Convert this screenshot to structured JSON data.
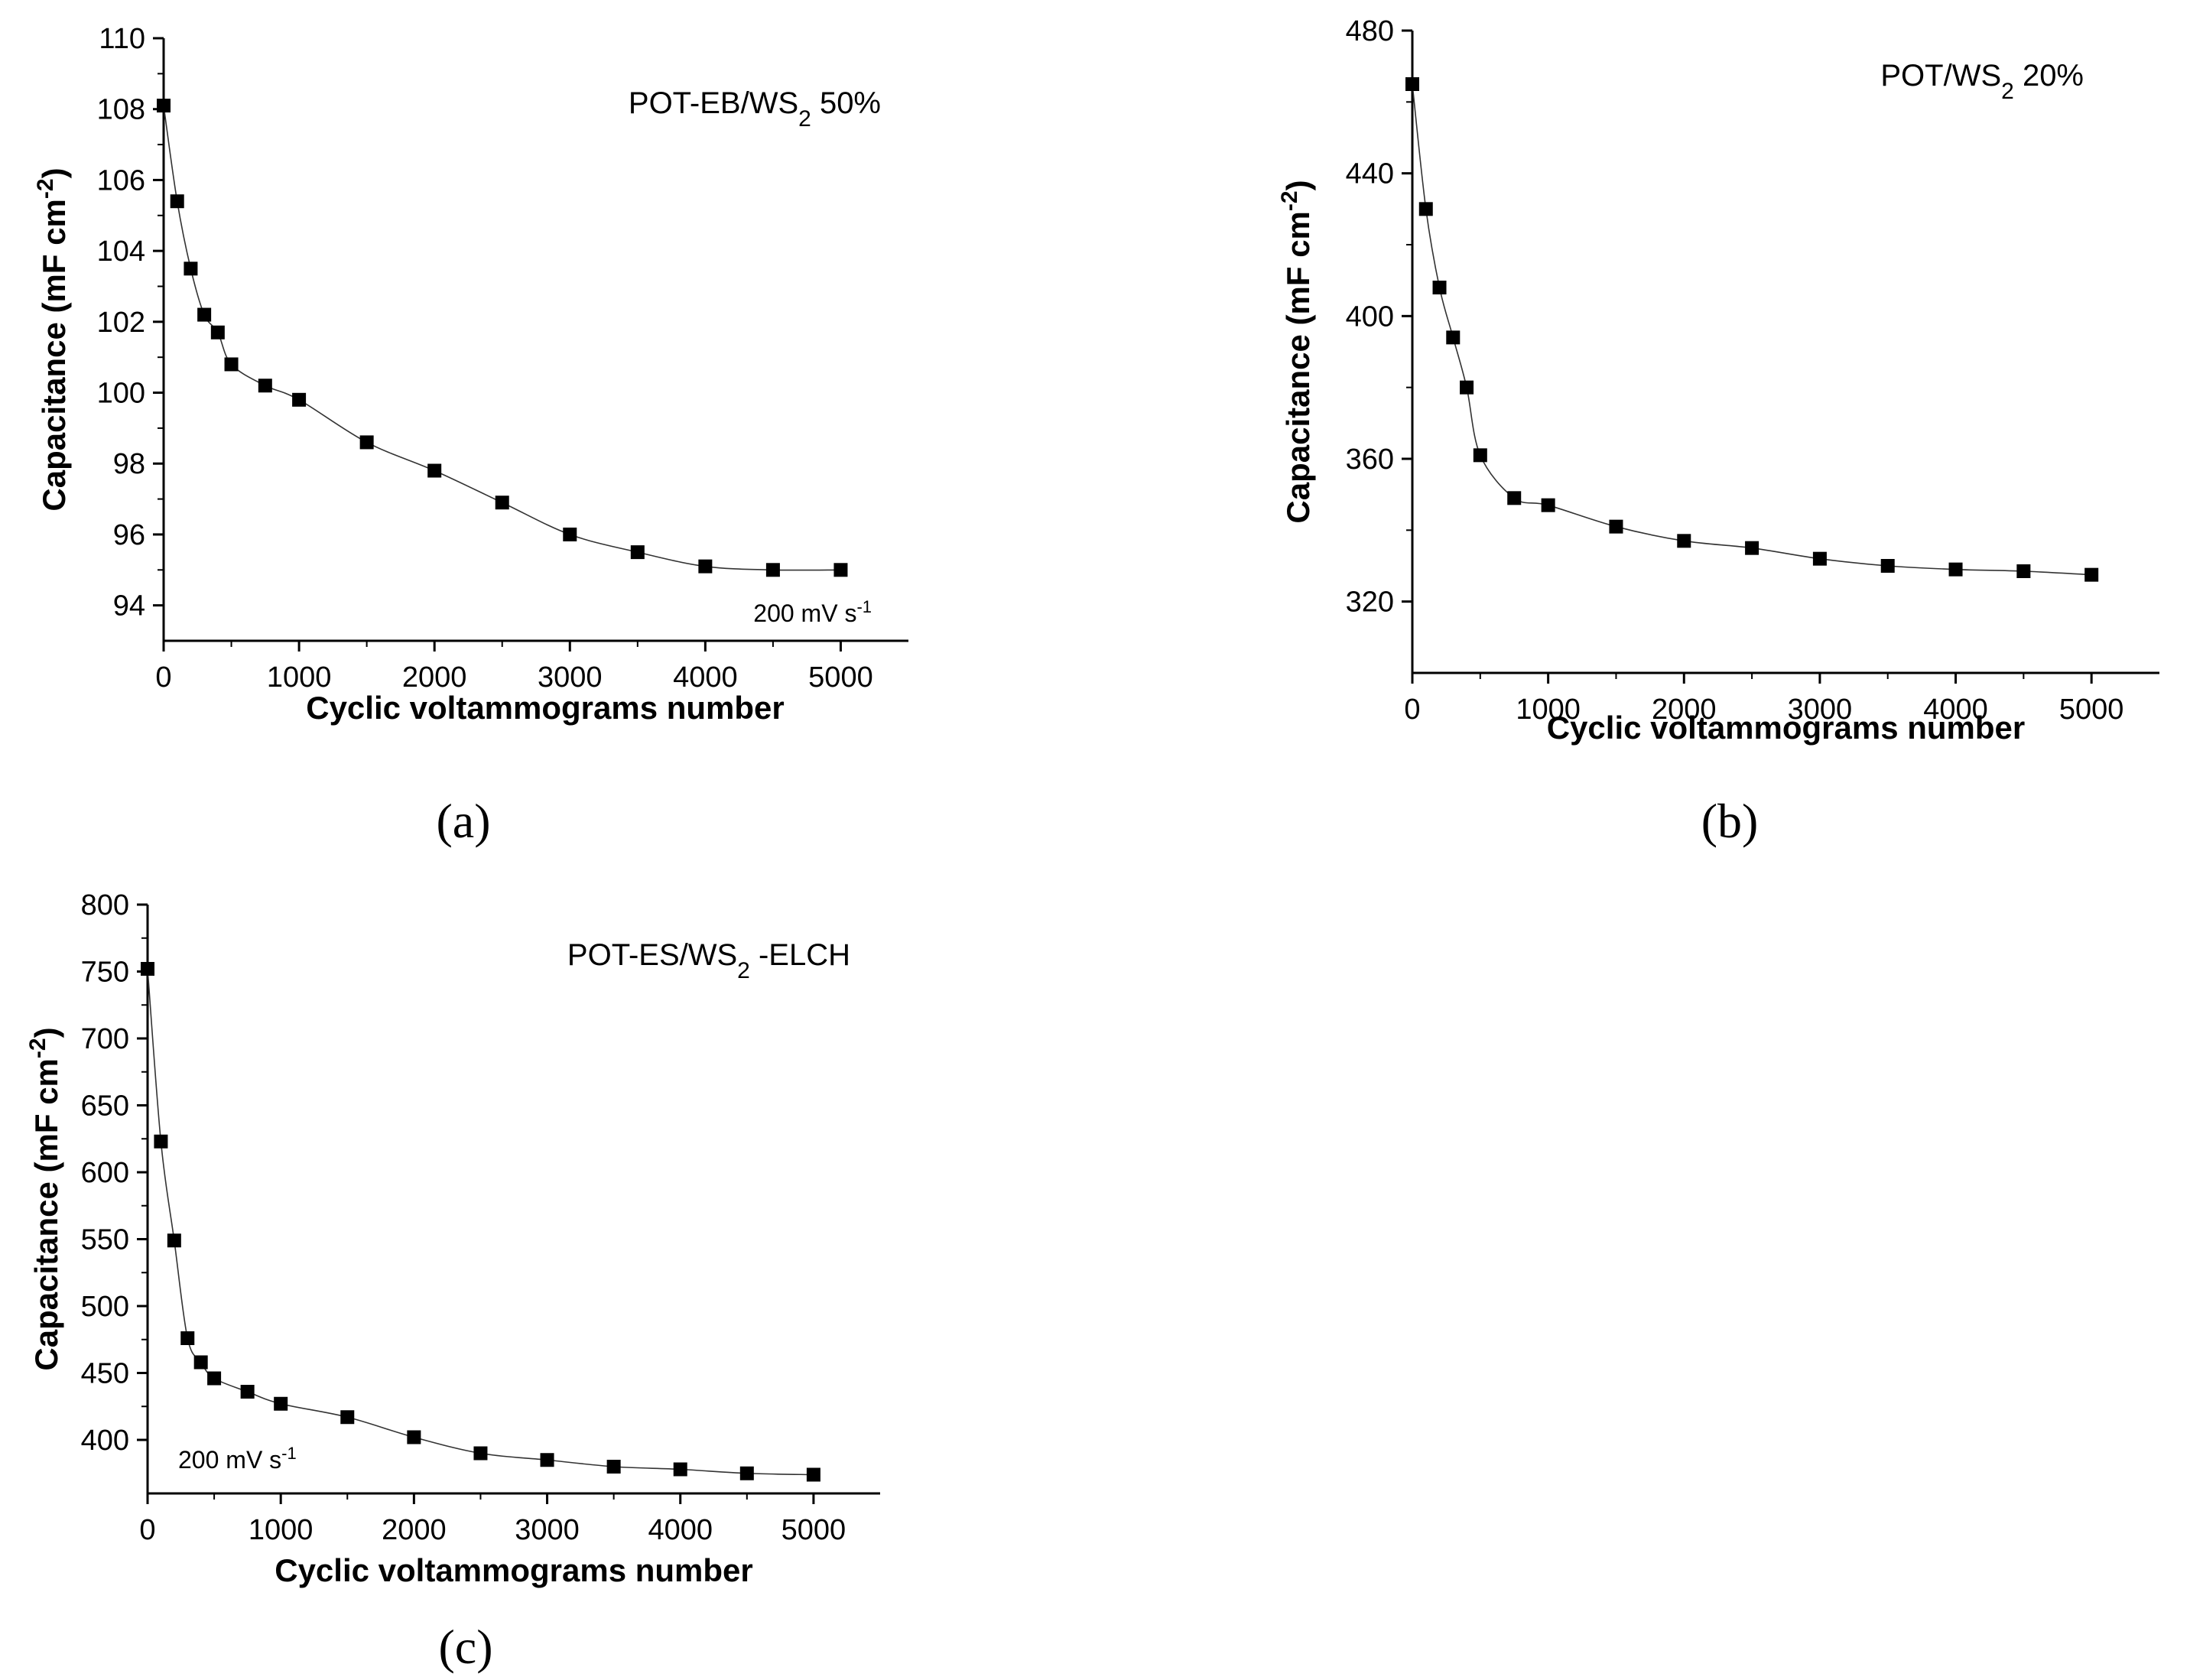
{
  "chart_data": [
    {
      "type": "scatter",
      "panel_label": "(a)",
      "sample_label": "POT-EB/WS2 50%",
      "sample_label_main": "POT-EB/WS",
      "sample_label_sub": "2",
      "sample_label_tail": " 50%",
      "scan_rate": "200 mV s",
      "scan_rate_sup": "-1",
      "xlabel": "Cyclic voltammograms number",
      "ylabel_main": "Capacitance (mF cm",
      "ylabel_sup": "-2",
      "ylabel_tail": ")",
      "xlim": [
        0,
        5500
      ],
      "ylim": [
        93,
        110
      ],
      "xticks": [
        0,
        1000,
        2000,
        3000,
        4000,
        5000
      ],
      "yticks": [
        94,
        96,
        98,
        100,
        102,
        104,
        106,
        108,
        110
      ],
      "series": [
        {
          "name": "POT-EB/WS2 50%",
          "x": [
            0,
            100,
            200,
            300,
            400,
            500,
            750,
            1000,
            1500,
            2000,
            2500,
            3000,
            3500,
            4000,
            4500,
            5000
          ],
          "y": [
            108.1,
            105.4,
            103.5,
            102.2,
            101.7,
            100.8,
            100.2,
            99.8,
            98.6,
            97.8,
            96.9,
            96.0,
            95.5,
            95.1,
            95.0,
            95.0
          ]
        }
      ]
    },
    {
      "type": "scatter",
      "panel_label": "(b)",
      "sample_label": "POT/WS2 20%",
      "sample_label_main": "POT/WS",
      "sample_label_sub": "2",
      "sample_label_tail": " 20%",
      "xlabel": "Cyclic voltammograms number",
      "ylabel_main": "Capacitance (mF cm",
      "ylabel_sup": "-2",
      "ylabel_tail": ")",
      "xlim": [
        0,
        5500
      ],
      "ylim": [
        300,
        480
      ],
      "xticks": [
        0,
        1000,
        2000,
        3000,
        4000,
        5000
      ],
      "yticks": [
        320,
        360,
        400,
        440,
        480
      ],
      "series": [
        {
          "name": "POT/WS2 20%",
          "x": [
            0,
            100,
            200,
            300,
            400,
            500,
            750,
            1000,
            1500,
            2000,
            2500,
            3000,
            3500,
            4000,
            4500,
            5000
          ],
          "y": [
            465,
            430,
            408,
            394,
            380,
            361,
            349,
            347,
            341,
            337,
            335,
            332,
            330,
            329,
            328.5,
            327.5
          ]
        }
      ]
    },
    {
      "type": "scatter",
      "panel_label": "(c)",
      "sample_label": "POT-ES/WS2 -ELCH",
      "sample_label_main": "POT-ES/WS",
      "sample_label_sub": "2",
      "sample_label_tail": " -ELCH",
      "scan_rate": "200 mV s",
      "scan_rate_sup": "-1",
      "xlabel": "Cyclic voltammograms number",
      "ylabel_main": "Capacitance (mF cm",
      "ylabel_sup": "-2",
      "ylabel_tail": ")",
      "xlim": [
        0,
        5500
      ],
      "ylim": [
        360,
        800
      ],
      "xticks": [
        0,
        1000,
        2000,
        3000,
        4000,
        5000
      ],
      "yticks": [
        400,
        450,
        500,
        550,
        600,
        650,
        700,
        750,
        800
      ],
      "series": [
        {
          "name": "POT-ES/WS2 -ELCH",
          "x": [
            0,
            100,
            200,
            300,
            400,
            500,
            750,
            1000,
            1500,
            2000,
            2500,
            3000,
            3500,
            4000,
            4500,
            5000
          ],
          "y": [
            752,
            623,
            549,
            476,
            458,
            446,
            436,
            427,
            417,
            402,
            390,
            385,
            380,
            378,
            375,
            374
          ]
        }
      ]
    }
  ]
}
